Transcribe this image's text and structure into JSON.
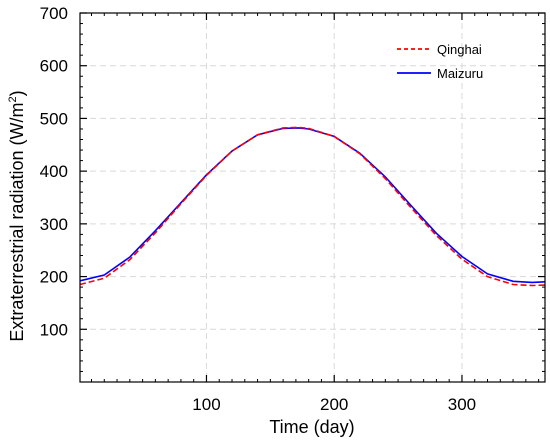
{
  "chart_data": {
    "type": "line",
    "title": "",
    "xlabel": "Time (day)",
    "ylabel_main": "Extraterrestrial radiation (W/m",
    "ylabel_sup": "2",
    "ylabel_close": ")",
    "xlim": [
      1,
      365
    ],
    "ylim": [
      0,
      700
    ],
    "xticks": [
      100,
      200,
      300
    ],
    "yticks": [
      100,
      200,
      300,
      400,
      500,
      600,
      700
    ],
    "grid": true,
    "legend_position": "top-right",
    "series": [
      {
        "name": "Qinghai",
        "color": "#ff0000",
        "style": "dashed",
        "points": [
          [
            1,
            185
          ],
          [
            20,
            197
          ],
          [
            40,
            232
          ],
          [
            60,
            283
          ],
          [
            80,
            338
          ],
          [
            100,
            392
          ],
          [
            120,
            438
          ],
          [
            140,
            469
          ],
          [
            160,
            482
          ],
          [
            172,
            483
          ],
          [
            180,
            481
          ],
          [
            200,
            466
          ],
          [
            220,
            433
          ],
          [
            240,
            386
          ],
          [
            260,
            331
          ],
          [
            280,
            278
          ],
          [
            300,
            233
          ],
          [
            320,
            200
          ],
          [
            340,
            185
          ],
          [
            355,
            183
          ],
          [
            365,
            184
          ]
        ]
      },
      {
        "name": "Maizuru",
        "color": "#0000ff",
        "style": "solid",
        "points": [
          [
            1,
            192
          ],
          [
            20,
            203
          ],
          [
            40,
            237
          ],
          [
            60,
            287
          ],
          [
            80,
            340
          ],
          [
            100,
            393
          ],
          [
            120,
            438
          ],
          [
            140,
            469
          ],
          [
            160,
            481
          ],
          [
            172,
            482
          ],
          [
            180,
            480
          ],
          [
            200,
            466
          ],
          [
            220,
            434
          ],
          [
            240,
            389
          ],
          [
            260,
            335
          ],
          [
            280,
            282
          ],
          [
            300,
            238
          ],
          [
            320,
            205
          ],
          [
            340,
            191
          ],
          [
            355,
            189
          ],
          [
            365,
            190
          ]
        ]
      }
    ]
  }
}
